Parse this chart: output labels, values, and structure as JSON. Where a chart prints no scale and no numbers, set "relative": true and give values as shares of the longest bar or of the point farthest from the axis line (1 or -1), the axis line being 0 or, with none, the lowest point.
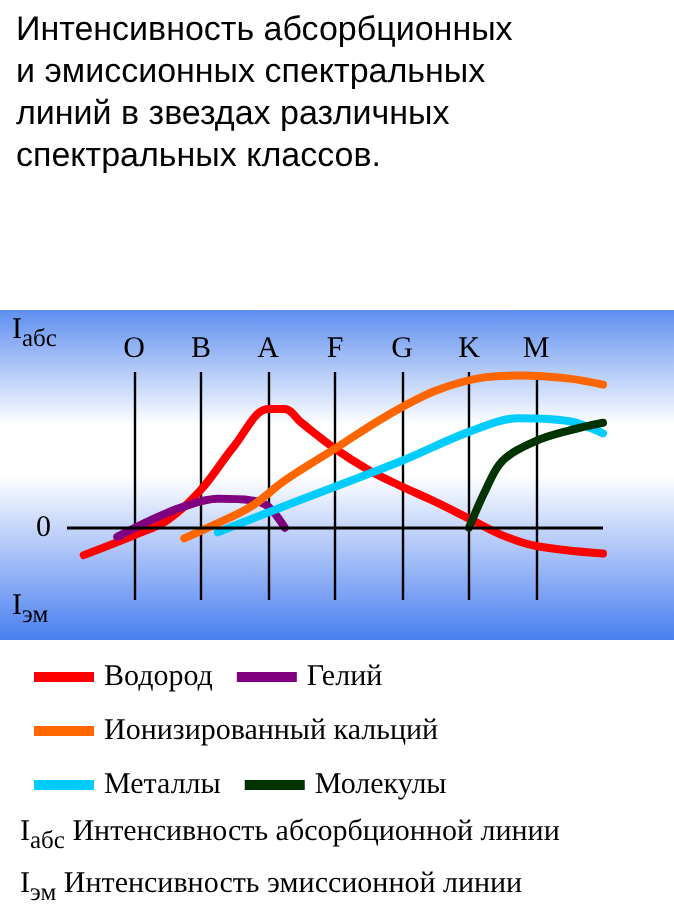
{
  "chart_data": {
    "type": "line",
    "title": "Интенсивность абсорбционных и эмиссионных спектральных линий в звездах различных спектральных классов.",
    "relative": true,
    "categories": [
      null,
      null,
      null,
      null,
      "O",
      null,
      null,
      null,
      "B",
      null,
      null,
      null,
      "A",
      null,
      null,
      null,
      "F",
      null,
      null,
      null,
      "G",
      null,
      null,
      null,
      "K",
      null,
      null,
      null,
      "M",
      null,
      null,
      null,
      null
    ],
    "grid": "x",
    "legend": "bottom",
    "marker": "none",
    "line_style": "solid",
    "ref_lines": [
      {
        "axis": "y",
        "value": 0,
        "label": "0",
        "color": "#000000"
      }
    ],
    "annotations": [
      "I$_{абс}$",
      "I$_{эм}$",
      "I$_{абс}$ Интенсивность абсорбционной линии",
      "I$_{эм}$ Интенсивность эмиссионной линии"
    ],
    "series": [
      {
        "name": "Водород",
        "color": "#ff0000",
        "values": [
          null,
          -0.18,
          null,
          null,
          -0.05,
          null,
          0.05,
          null,
          0.25,
          null,
          0.54,
          null,
          0.78,
          0.78,
          0.69,
          null,
          0.52,
          null,
          0.38,
          null,
          0.27,
          null,
          0.17,
          null,
          0.06,
          null,
          -0.05,
          null,
          -0.12,
          null,
          null,
          null,
          -0.17
        ]
      },
      {
        "name": "Гелий",
        "color": "#800080",
        "values": [
          null,
          null,
          null,
          -0.06,
          null,
          0.05,
          null,
          0.14,
          null,
          0.19,
          null,
          0.18,
          0.14,
          0.0,
          null,
          null,
          null,
          null,
          null,
          null,
          null,
          null,
          null,
          null,
          null,
          null,
          null,
          null,
          null,
          null,
          null,
          null,
          null
        ]
      },
      {
        "name": "Ионизированный кальций",
        "color": "#ff6600",
        "values": [
          null,
          null,
          null,
          null,
          null,
          null,
          null,
          -0.07,
          null,
          0.03,
          null,
          0.14,
          null,
          0.31,
          null,
          null,
          0.52,
          null,
          null,
          0.73,
          null,
          null,
          0.9,
          null,
          null,
          0.99,
          null,
          1.0,
          null,
          null,
          0.98,
          null,
          0.94
        ]
      },
      {
        "name": "Металлы",
        "color": "#00ccff",
        "values": [
          null,
          null,
          null,
          null,
          null,
          null,
          null,
          null,
          null,
          -0.03,
          null,
          null,
          0.1,
          null,
          null,
          null,
          0.27,
          null,
          null,
          null,
          0.44,
          null,
          null,
          null,
          0.63,
          null,
          null,
          0.72,
          null,
          null,
          0.7,
          null,
          0.62
        ]
      },
      {
        "name": "Молекулы",
        "color": "#003300",
        "values": [
          null,
          null,
          null,
          null,
          null,
          null,
          null,
          null,
          null,
          null,
          null,
          null,
          null,
          null,
          null,
          null,
          null,
          null,
          null,
          null,
          null,
          null,
          null,
          null,
          0.0,
          0.25,
          0.44,
          null,
          0.57,
          null,
          0.64,
          null,
          0.69
        ]
      }
    ]
  }
}
